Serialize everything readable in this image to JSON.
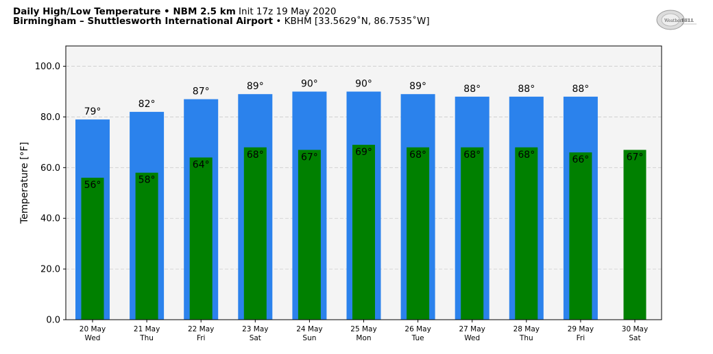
{
  "header": {
    "line1_bold": "Daily High/Low Temperature • NBM 2.5 km",
    "line1_normal": " Init 17z 19 May 2020",
    "line2_bold": "Birmingham – Shuttlesworth International Airport",
    "line2_normal": " • KBHM [33.5629˚N, 86.7535˚W]"
  },
  "logo": {
    "text_a": "Weather",
    "text_b": "BELL"
  },
  "colors": {
    "high": "#2b82ec",
    "low": "#008000",
    "plot_bg": "#f4f4f4",
    "grid": "#cccccc"
  },
  "chart_data": {
    "type": "bar",
    "ylabel": "Temperature [°F]",
    "ylim": [
      0,
      108
    ],
    "yticks": [
      "0.0",
      "20.0",
      "40.0",
      "60.0",
      "80.0",
      "100.0"
    ],
    "ytick_values": [
      0,
      20,
      40,
      60,
      80,
      100
    ],
    "grid": true,
    "categories": [
      {
        "date": "20 May",
        "day": "Wed"
      },
      {
        "date": "21 May",
        "day": "Thu"
      },
      {
        "date": "22 May",
        "day": "Fri"
      },
      {
        "date": "23 May",
        "day": "Sat"
      },
      {
        "date": "24 May",
        "day": "Sun"
      },
      {
        "date": "25 May",
        "day": "Mon"
      },
      {
        "date": "26 May",
        "day": "Tue"
      },
      {
        "date": "27 May",
        "day": "Wed"
      },
      {
        "date": "28 May",
        "day": "Thu"
      },
      {
        "date": "29 May",
        "day": "Fri"
      },
      {
        "date": "30 May",
        "day": "Sat"
      }
    ],
    "series": [
      {
        "key": "high",
        "values": [
          79,
          82,
          87,
          89,
          90,
          90,
          89,
          88,
          88,
          88,
          null
        ],
        "labels": [
          "79°",
          "82°",
          "87°",
          "89°",
          "90°",
          "90°",
          "89°",
          "88°",
          "88°",
          "88°",
          ""
        ]
      },
      {
        "key": "low",
        "values": [
          56,
          58,
          64,
          68,
          67,
          69,
          68,
          68,
          68,
          66,
          67
        ],
        "labels": [
          "56°",
          "58°",
          "64°",
          "68°",
          "67°",
          "69°",
          "68°",
          "68°",
          "68°",
          "66°",
          "67°"
        ]
      }
    ]
  }
}
